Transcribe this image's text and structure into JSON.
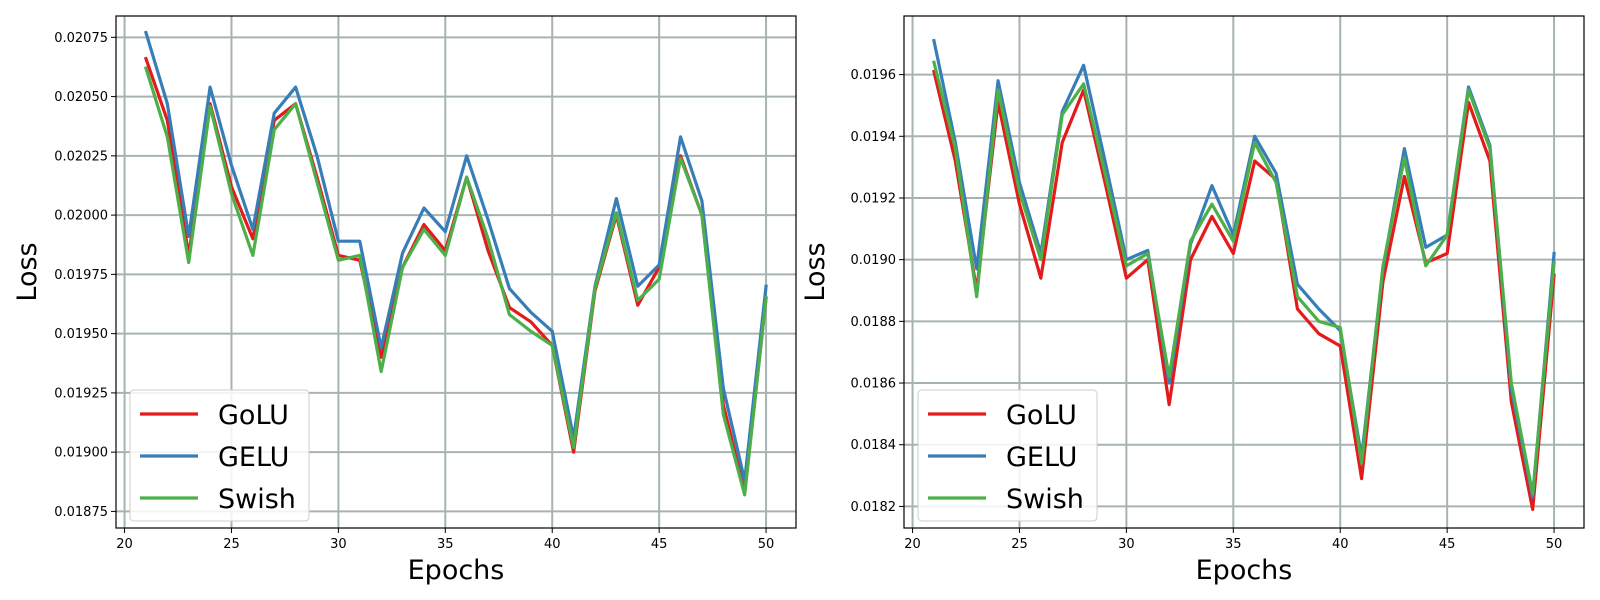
{
  "figure_title": "",
  "colors": {
    "GoLU": "#e41a1c",
    "GELU": "#377eb8",
    "Swish": "#4daf4a",
    "grid": "#a7b3b0"
  },
  "chart_data": [
    {
      "type": "line",
      "title": "",
      "xlabel": "Epochs",
      "ylabel": "Loss",
      "xlim": [
        19.6,
        51.4
      ],
      "ylim": [
        0.01868,
        0.02084
      ],
      "xticks": [
        20,
        25,
        30,
        35,
        40,
        45,
        50
      ],
      "yticks": [
        0.01875,
        0.019,
        0.01925,
        0.0195,
        0.01975,
        0.02,
        0.02025,
        0.0205,
        0.02075
      ],
      "ytick_labels": [
        "0.01875",
        "0.01900",
        "0.01925",
        "0.01950",
        "0.01975",
        "0.02000",
        "0.02025",
        "0.02050",
        "0.02075"
      ],
      "grid": true,
      "legend_position": "lower-left",
      "x": [
        21,
        22,
        23,
        24,
        25,
        26,
        27,
        28,
        29,
        30,
        31,
        32,
        33,
        34,
        35,
        36,
        37,
        38,
        39,
        40,
        41,
        42,
        43,
        44,
        45,
        46,
        47,
        48,
        49,
        50
      ],
      "series": [
        {
          "name": "GoLU",
          "values": [
            0.02066,
            0.0204,
            0.01983,
            0.02047,
            0.02012,
            0.0199,
            0.0204,
            0.02047,
            0.02016,
            0.01983,
            0.01981,
            0.0194,
            0.01978,
            0.01996,
            0.01985,
            0.02016,
            0.01985,
            0.01961,
            0.01955,
            0.01945,
            0.019,
            0.01968,
            0.02,
            0.01962,
            0.01978,
            0.02025,
            0.02,
            0.0192,
            0.01883,
            0.01965
          ]
        },
        {
          "name": "GELU",
          "values": [
            0.02077,
            0.02047,
            0.01991,
            0.02054,
            0.02021,
            0.01994,
            0.02043,
            0.02054,
            0.02025,
            0.01989,
            0.01989,
            0.01944,
            0.01984,
            0.02003,
            0.01993,
            0.02025,
            0.01998,
            0.01969,
            0.01959,
            0.01951,
            0.01906,
            0.0197,
            0.02007,
            0.0197,
            0.01979,
            0.02033,
            0.02006,
            0.01927,
            0.01888,
            0.0197
          ]
        },
        {
          "name": "Swish",
          "values": [
            0.02062,
            0.02033,
            0.0198,
            0.02046,
            0.02009,
            0.01983,
            0.02036,
            0.02047,
            0.02014,
            0.01981,
            0.01983,
            0.01934,
            0.01978,
            0.01994,
            0.01983,
            0.02016,
            0.0199,
            0.01958,
            0.01951,
            0.01945,
            0.01902,
            0.01969,
            0.02001,
            0.01964,
            0.01973,
            0.02024,
            0.02,
            0.01916,
            0.01882,
            0.01965
          ]
        }
      ]
    },
    {
      "type": "line",
      "title": "",
      "xlabel": "Epochs",
      "ylabel": "Loss",
      "xlim": [
        19.6,
        51.4
      ],
      "ylim": [
        0.01813,
        0.01979
      ],
      "xticks": [
        20,
        25,
        30,
        35,
        40,
        45,
        50
      ],
      "yticks": [
        0.0182,
        0.0184,
        0.0186,
        0.0188,
        0.019,
        0.0192,
        0.0194,
        0.0196
      ],
      "ytick_labels": [
        "0.0182",
        "0.0184",
        "0.0186",
        "0.0188",
        "0.0190",
        "0.0192",
        "0.0194",
        "0.0196"
      ],
      "grid": true,
      "legend_position": "lower-left",
      "x": [
        21,
        22,
        23,
        24,
        25,
        26,
        27,
        28,
        29,
        30,
        31,
        32,
        33,
        34,
        35,
        36,
        37,
        38,
        39,
        40,
        41,
        42,
        43,
        44,
        45,
        46,
        47,
        48,
        49,
        50
      ],
      "series": [
        {
          "name": "GoLU",
          "values": [
            0.01961,
            0.01932,
            0.0189,
            0.01951,
            0.01918,
            0.01894,
            0.01938,
            0.01955,
            0.01925,
            0.01894,
            0.019,
            0.01853,
            0.019,
            0.01914,
            0.01902,
            0.01932,
            0.01926,
            0.01884,
            0.01876,
            0.01872,
            0.01829,
            0.01893,
            0.01927,
            0.01899,
            0.01902,
            0.01951,
            0.01932,
            0.01854,
            0.01819,
            0.01895
          ]
        },
        {
          "name": "GELU",
          "values": [
            0.01971,
            0.01938,
            0.01897,
            0.01958,
            0.01925,
            0.01902,
            0.01948,
            0.01963,
            0.01932,
            0.019,
            0.01903,
            0.0186,
            0.01905,
            0.01924,
            0.01908,
            0.0194,
            0.01928,
            0.01892,
            0.01884,
            0.01877,
            0.01836,
            0.01897,
            0.01936,
            0.01904,
            0.01908,
            0.01956,
            0.01937,
            0.01858,
            0.01823,
            0.01902
          ]
        },
        {
          "name": "Swish",
          "values": [
            0.01964,
            0.01936,
            0.01888,
            0.01955,
            0.01922,
            0.019,
            0.01947,
            0.01957,
            0.01928,
            0.01898,
            0.01902,
            0.01862,
            0.01906,
            0.01918,
            0.01906,
            0.01938,
            0.01925,
            0.01888,
            0.0188,
            0.01878,
            0.01834,
            0.01898,
            0.01933,
            0.01898,
            0.01908,
            0.01955,
            0.01936,
            0.0186,
            0.01824,
            0.01899
          ]
        }
      ]
    }
  ]
}
